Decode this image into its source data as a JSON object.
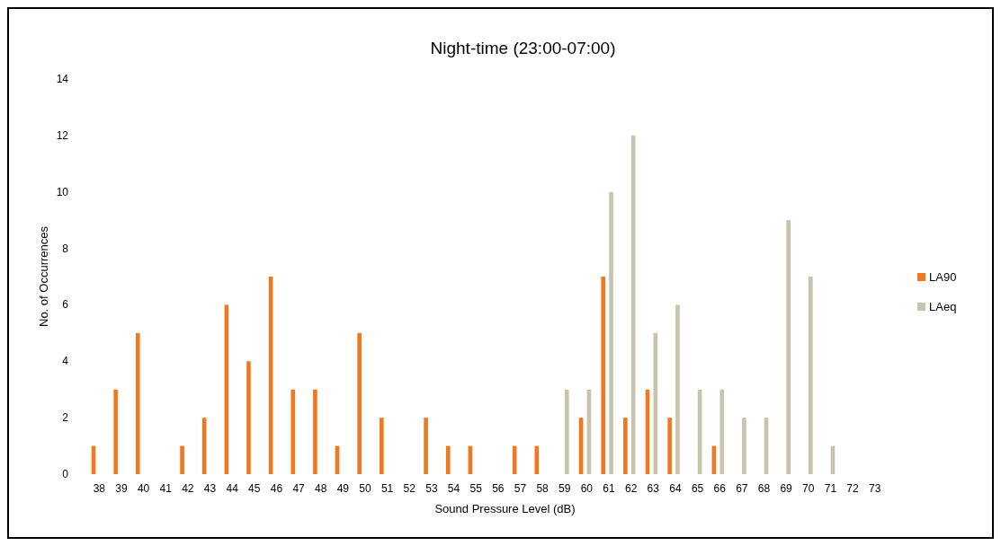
{
  "chart_data": {
    "type": "bar",
    "title": "Night-time (23:00-07:00)",
    "xlabel": "Sound Pressure Level (dB)",
    "ylabel": "No. of Occurrences",
    "categories": [
      "38",
      "39",
      "40",
      "41",
      "42",
      "43",
      "44",
      "45",
      "46",
      "47",
      "48",
      "49",
      "50",
      "51",
      "52",
      "53",
      "54",
      "55",
      "56",
      "57",
      "58",
      "59",
      "60",
      "61",
      "62",
      "63",
      "64",
      "65",
      "66",
      "67",
      "68",
      "69",
      "70",
      "71",
      "72",
      "73"
    ],
    "series": [
      {
        "name": "LA90",
        "color": "#f07820",
        "values": [
          1,
          3,
          5,
          null,
          1,
          2,
          6,
          4,
          7,
          3,
          3,
          1,
          5,
          2,
          null,
          2,
          1,
          1,
          null,
          1,
          1,
          null,
          2,
          7,
          2,
          3,
          2,
          null,
          1,
          null,
          null,
          null,
          null,
          null,
          null,
          null
        ]
      },
      {
        "name": "LAeq",
        "color": "#c9c3ad",
        "values": [
          null,
          null,
          null,
          null,
          null,
          null,
          null,
          null,
          null,
          null,
          null,
          null,
          null,
          null,
          null,
          null,
          null,
          null,
          null,
          null,
          null,
          3,
          3,
          10,
          12,
          5,
          6,
          3,
          3,
          2,
          2,
          9,
          7,
          1,
          null,
          null
        ]
      }
    ],
    "ylim": [
      0,
      14
    ],
    "yticks": [
      0,
      2,
      4,
      6,
      8,
      10,
      12,
      14
    ],
    "grid": false,
    "legend": "right"
  }
}
